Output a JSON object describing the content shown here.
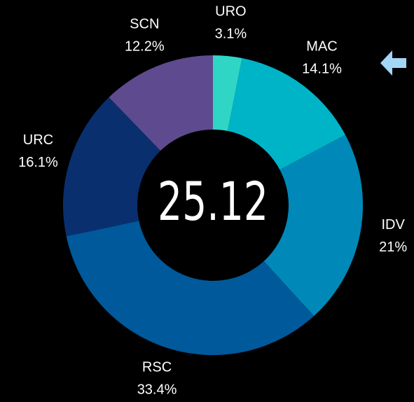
{
  "chart_data": {
    "type": "donut",
    "categories": [
      "URO",
      "MAC",
      "IDV",
      "RSC",
      "URC",
      "SCN"
    ],
    "values": [
      3.1,
      14.1,
      21,
      33.4,
      16.1,
      12.2
    ],
    "value_labels": [
      "3.1%",
      "14.1%",
      "21%",
      "33.4%",
      "16.1%",
      "12.2%"
    ],
    "colors": [
      "#2fd6c6",
      "#00b4c8",
      "#0089b8",
      "#00599b",
      "#0a2f6e",
      "#5e4a8e"
    ],
    "center_value": 25.12
  }
}
